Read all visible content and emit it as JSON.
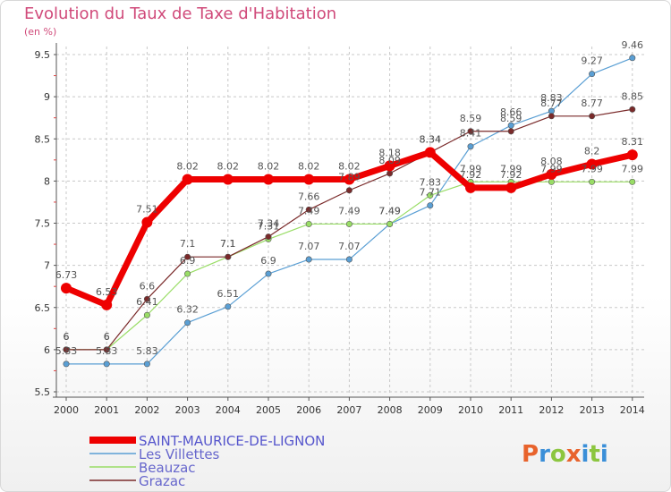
{
  "title": "Evolution du Taux de Taxe d'Habitation",
  "subtitle": "(en %)",
  "logo": {
    "text": "Proxiti",
    "colors": [
      "#e8632c",
      "#3a8fd8",
      "#8cc63f",
      "#e8632c",
      "#3a8fd8",
      "#8cc63f",
      "#3a8fd8"
    ]
  },
  "chart_data": {
    "type": "line",
    "title": "Evolution du Taux de Taxe d'Habitation",
    "ylabel": "(en %)",
    "xlabel": "",
    "x": [
      "2000",
      "2001",
      "2002",
      "2003",
      "2004",
      "2005",
      "2006",
      "2007",
      "2008",
      "2009",
      "2010",
      "2011",
      "2012",
      "2013",
      "2014"
    ],
    "ylim": [
      5.5,
      9.5
    ],
    "yticks": [
      "5.5",
      "6",
      "6.5",
      "7",
      "7.5",
      "8",
      "8.5",
      "9",
      "9.5"
    ],
    "grid": true,
    "legend_position": "bottom-left",
    "series": [
      {
        "name": "SAINT-MAURICE-DE-LIGNON",
        "color": "#ee0000",
        "values": [
          6.73,
          6.53,
          7.51,
          8.02,
          8.02,
          8.02,
          8.02,
          8.02,
          8.18,
          8.34,
          7.92,
          7.92,
          8.08,
          8.2,
          8.31
        ],
        "labels": [
          "6.73",
          "6.53",
          "7.51",
          "8.02",
          "8.02",
          "8.02",
          "8.02",
          "8.02",
          "8.18",
          "8.34",
          "7.92",
          "7.92",
          "8.08",
          "8.2",
          "8.31"
        ]
      },
      {
        "name": "Les Villettes",
        "color": "#5a9fd4",
        "values": [
          5.83,
          5.83,
          5.83,
          6.32,
          6.51,
          6.9,
          7.07,
          7.07,
          7.49,
          7.71,
          8.41,
          8.66,
          8.83,
          9.27,
          9.46
        ],
        "labels": [
          "5.83",
          "5.83",
          "5.83",
          "6.32",
          "6.51",
          "6.9",
          "7.07",
          "7.07",
          "7.49",
          "7.71",
          "8.41",
          "8.66",
          "8.83",
          "9.27",
          "9.46"
        ]
      },
      {
        "name": "Beauzac",
        "color": "#99dd66",
        "values": [
          6,
          6,
          6.41,
          6.9,
          7.1,
          7.31,
          7.49,
          7.49,
          7.49,
          7.83,
          7.99,
          7.99,
          7.99,
          7.99,
          7.99
        ],
        "labels": [
          "6",
          "6",
          "6.41",
          "6.9",
          "7.1",
          "7.31",
          "7.49",
          "7.49",
          "7.49",
          "7.83",
          "7.99",
          "7.99",
          "7.99",
          "7.99",
          "7.99"
        ]
      },
      {
        "name": "Grazac",
        "color": "#7a2a2a",
        "values": [
          6,
          6,
          6.6,
          7.1,
          7.1,
          7.34,
          7.66,
          7.89,
          8.09,
          8.34,
          8.59,
          8.59,
          8.77,
          8.77,
          8.85
        ],
        "labels": [
          "6",
          "6",
          "6.6",
          "7.1",
          "7.1",
          "7.34",
          "7.66",
          "7.89",
          "8.09",
          "8.34",
          "8.59",
          "8.59",
          "8.77",
          "8.77",
          "8.85"
        ]
      }
    ]
  }
}
